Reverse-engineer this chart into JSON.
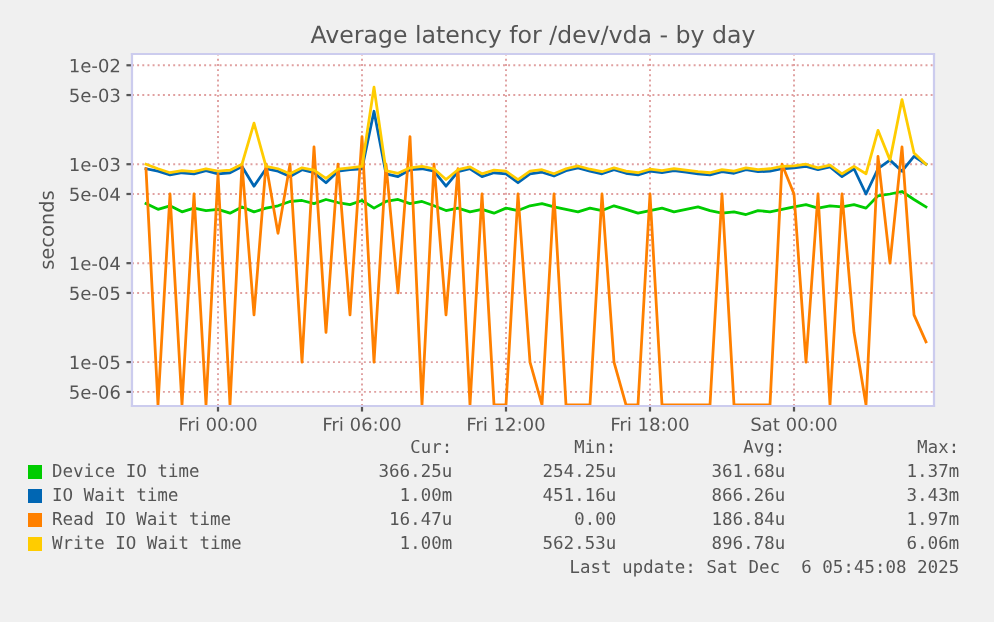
{
  "chart_data": {
    "type": "line",
    "title": "Average latency for /dev/vda - by day",
    "ylabel": "seconds",
    "x": [
      "2025-12-04T21:00",
      "2025-12-04T21:30",
      "2025-12-04T22:00",
      "2025-12-04T22:30",
      "2025-12-04T23:00",
      "2025-12-04T23:30",
      "2025-12-05T00:00",
      "2025-12-05T00:30",
      "2025-12-05T01:00",
      "2025-12-05T01:30",
      "2025-12-05T02:00",
      "2025-12-05T02:30",
      "2025-12-05T03:00",
      "2025-12-05T03:30",
      "2025-12-05T04:00",
      "2025-12-05T04:30",
      "2025-12-05T05:00",
      "2025-12-05T05:30",
      "2025-12-05T06:00",
      "2025-12-05T06:30",
      "2025-12-05T07:00",
      "2025-12-05T07:30",
      "2025-12-05T08:00",
      "2025-12-05T08:30",
      "2025-12-05T09:00",
      "2025-12-05T09:30",
      "2025-12-05T10:00",
      "2025-12-05T10:30",
      "2025-12-05T11:00",
      "2025-12-05T11:30",
      "2025-12-05T12:00",
      "2025-12-05T12:30",
      "2025-12-05T13:00",
      "2025-12-05T13:30",
      "2025-12-05T14:00",
      "2025-12-05T14:30",
      "2025-12-05T15:00",
      "2025-12-05T15:30",
      "2025-12-05T16:00",
      "2025-12-05T16:30",
      "2025-12-05T17:00",
      "2025-12-05T17:30",
      "2025-12-05T18:00",
      "2025-12-05T18:30",
      "2025-12-05T19:00",
      "2025-12-05T19:30",
      "2025-12-05T20:00",
      "2025-12-05T20:30",
      "2025-12-05T21:00",
      "2025-12-05T21:30",
      "2025-12-05T22:00",
      "2025-12-05T22:30",
      "2025-12-05T23:00",
      "2025-12-05T23:30",
      "2025-12-06T00:00",
      "2025-12-06T00:30",
      "2025-12-06T01:00",
      "2025-12-06T01:30",
      "2025-12-06T02:00",
      "2025-12-06T02:30",
      "2025-12-06T03:00",
      "2025-12-06T03:30",
      "2025-12-06T04:00",
      "2025-12-06T04:30",
      "2025-12-06T05:00",
      "2025-12-06T05:30"
    ],
    "series": [
      {
        "name": "Device IO time",
        "color": "#00cc00",
        "values": [
          0.0004,
          0.00035,
          0.00038,
          0.00033,
          0.00036,
          0.00034,
          0.00035,
          0.00032,
          0.00037,
          0.00033,
          0.00036,
          0.00038,
          0.00042,
          0.00043,
          0.0004,
          0.00044,
          0.00041,
          0.00039,
          0.00043,
          0.00036,
          0.00042,
          0.00044,
          0.0004,
          0.00042,
          0.00038,
          0.00034,
          0.00036,
          0.00033,
          0.00035,
          0.00032,
          0.00036,
          0.00034,
          0.00038,
          0.0004,
          0.00037,
          0.00035,
          0.00033,
          0.00036,
          0.00034,
          0.00038,
          0.00035,
          0.00032,
          0.00034,
          0.00036,
          0.00033,
          0.00035,
          0.00037,
          0.00034,
          0.00032,
          0.00033,
          0.00031,
          0.00034,
          0.00033,
          0.00035,
          0.00037,
          0.00039,
          0.00036,
          0.00038,
          0.00037,
          0.00039,
          0.00036,
          0.00048,
          0.0005,
          0.00053,
          0.00044,
          0.00037
        ]
      },
      {
        "name": "IO Wait time",
        "color": "#0066b3",
        "values": [
          0.0009,
          0.00085,
          0.00078,
          0.00082,
          0.0008,
          0.00086,
          0.0008,
          0.00082,
          0.00095,
          0.0006,
          0.0009,
          0.00085,
          0.00075,
          0.00088,
          0.00082,
          0.00065,
          0.00085,
          0.00088,
          0.0009,
          0.00343,
          0.0008,
          0.00075,
          0.00088,
          0.0009,
          0.00085,
          0.0006,
          0.00084,
          0.0009,
          0.00075,
          0.00082,
          0.0008,
          0.00065,
          0.0008,
          0.00083,
          0.00076,
          0.00086,
          0.00092,
          0.00085,
          0.0008,
          0.00088,
          0.00081,
          0.00078,
          0.00085,
          0.00082,
          0.00086,
          0.00083,
          0.0008,
          0.00078,
          0.00084,
          0.00081,
          0.00088,
          0.00084,
          0.00085,
          0.0009,
          0.00092,
          0.00095,
          0.00088,
          0.00094,
          0.00075,
          0.0009,
          0.0005,
          0.0009,
          0.0011,
          0.00085,
          0.0012,
          0.001
        ]
      },
      {
        "name": "Read IO Wait time",
        "color": "#ff8000",
        "values": [
          0.0009,
          3.7e-06,
          0.0005,
          3.7e-06,
          0.0005,
          3.7e-06,
          0.0008,
          3.7e-06,
          0.001,
          3e-05,
          0.001,
          0.0002,
          0.001,
          1e-05,
          0.0015,
          2e-05,
          0.001,
          3e-05,
          0.0019,
          1e-05,
          0.001,
          5e-05,
          0.0019,
          3.7e-06,
          0.001,
          3e-05,
          0.0009,
          3.7e-06,
          0.0005,
          3.7e-06,
          3.7e-06,
          0.0005,
          1e-05,
          3.7e-06,
          0.0005,
          3.7e-06,
          3.7e-06,
          3.7e-06,
          0.0005,
          1e-05,
          3.7e-06,
          3.7e-06,
          0.0005,
          3.7e-06,
          3.7e-06,
          3.7e-06,
          3.7e-06,
          3.7e-06,
          0.0005,
          3.7e-06,
          3.7e-06,
          3.7e-06,
          3.7e-06,
          0.001,
          0.0005,
          1e-05,
          0.0005,
          3.7e-06,
          0.0005,
          2e-05,
          3.7e-06,
          0.0012,
          0.0001,
          0.0015,
          3e-05,
          1.6e-05
        ]
      },
      {
        "name": "Write IO Wait time",
        "color": "#ffcc00",
        "values": [
          0.001,
          0.0009,
          0.00082,
          0.00086,
          0.00084,
          0.0009,
          0.00085,
          0.00087,
          0.001,
          0.0026,
          0.00095,
          0.0009,
          0.0008,
          0.00092,
          0.00087,
          0.00072,
          0.00089,
          0.00092,
          0.00095,
          0.006,
          0.00086,
          0.00081,
          0.00092,
          0.00095,
          0.0009,
          0.0007,
          0.00088,
          0.00094,
          0.0008,
          0.00087,
          0.00085,
          0.0007,
          0.00085,
          0.00088,
          0.0008,
          0.0009,
          0.00096,
          0.00089,
          0.00084,
          0.00092,
          0.00085,
          0.00082,
          0.00089,
          0.00086,
          0.0009,
          0.00087,
          0.00084,
          0.00082,
          0.00088,
          0.00085,
          0.00092,
          0.00088,
          0.0009,
          0.00095,
          0.00096,
          0.001,
          0.00092,
          0.00098,
          0.0008,
          0.00095,
          0.0008,
          0.0022,
          0.0011,
          0.0045,
          0.0013,
          0.001
        ]
      }
    ],
    "log": true,
    "xlim": [
      "2025-12-04T20:25",
      "2025-12-06T05:50"
    ],
    "xticks": [
      {
        "value": "2025-12-05T00:00",
        "label": "Fri 00:00"
      },
      {
        "value": "2025-12-05T06:00",
        "label": "Fri 06:00"
      },
      {
        "value": "2025-12-05T12:00",
        "label": "Fri 12:00"
      },
      {
        "value": "2025-12-05T18:00",
        "label": "Fri 18:00"
      },
      {
        "value": "2025-12-06T00:00",
        "label": "Sat 00:00"
      }
    ],
    "ylim": [
      3.6e-06,
      0.013
    ],
    "yticks": [
      {
        "value": 0.01,
        "label": "1e-02"
      },
      {
        "value": 0.005,
        "label": "5e-03"
      },
      {
        "value": 0.001,
        "label": "1e-03"
      },
      {
        "value": 0.0005,
        "label": "5e-04"
      },
      {
        "value": 0.0001,
        "label": "1e-04"
      },
      {
        "value": 5e-05,
        "label": "5e-05"
      },
      {
        "value": 1e-05,
        "label": "1e-05"
      },
      {
        "value": 5e-06,
        "label": "5e-06"
      }
    ],
    "grid": true,
    "legend": "bottom",
    "marker": "none",
    "line_style": "solid",
    "annotations": [
      "Cur:",
      "Min:",
      "Avg:",
      "Max:",
      "366.25u",
      "254.25u",
      "361.68u",
      "1.37m",
      "1.00m",
      "451.16u",
      "866.26u",
      "3.43m",
      "16.47u",
      "0.00",
      "186.84u",
      "1.97m",
      "1.00m",
      "562.53u",
      "896.78u",
      "6.06m",
      "Last update: Sat Dec  6 05:45:08 2025"
    ]
  }
}
